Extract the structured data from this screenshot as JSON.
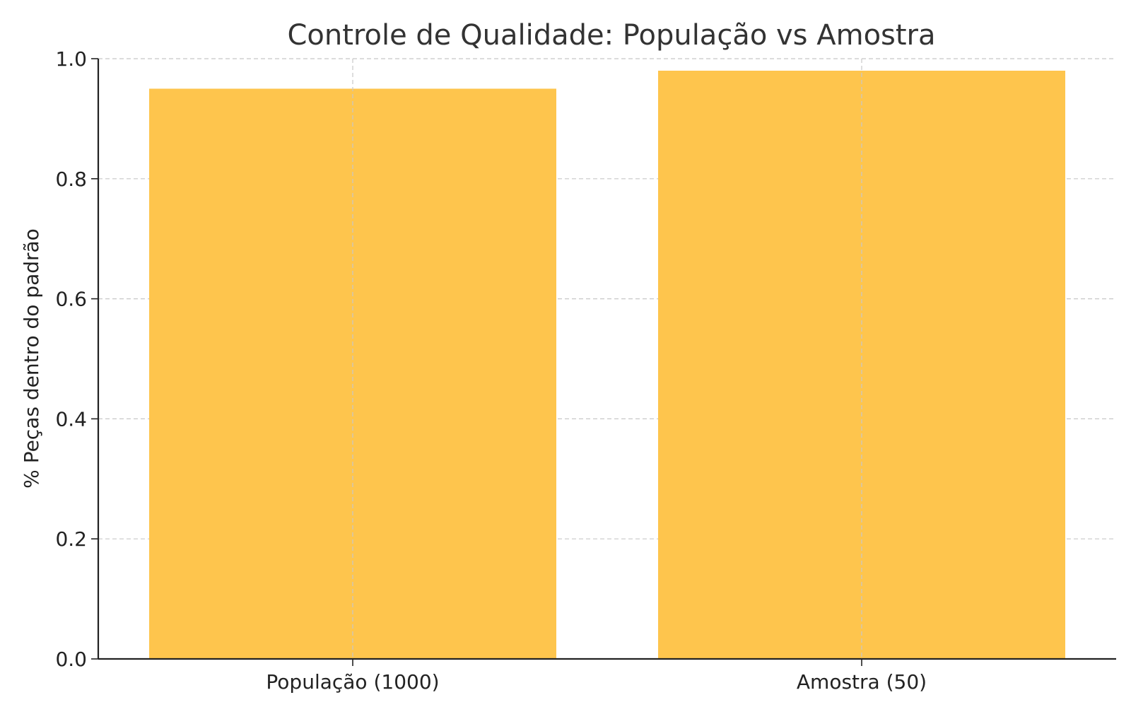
{
  "chart_data": {
    "type": "bar",
    "title": "Controle de Qualidade: População vs Amostra",
    "xlabel": "",
    "ylabel": "% Peças dentro do padrão",
    "categories": [
      "População (1000)",
      "Amostra (50)"
    ],
    "values": [
      0.95,
      0.98
    ],
    "ylim": [
      0,
      1.0
    ],
    "yticks": [
      "0.0",
      "0.2",
      "0.4",
      "0.6",
      "0.8",
      "1.0"
    ],
    "grid": true,
    "bar_color": "#FEC54D"
  }
}
